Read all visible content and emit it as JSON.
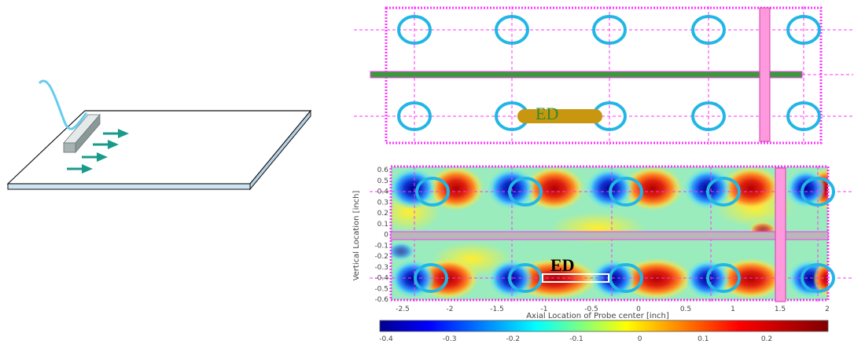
{
  "diagram": {
    "top_label": "ED",
    "bottom_label": "ED",
    "colors": {
      "grid_line": "#ff33ff",
      "circle": "#22b6e6",
      "rod": "#c8960f",
      "plate_top": "#ffffff",
      "plate_edge": "#c8e0f0",
      "arrow": "#1a9a8a",
      "probe": "#9aa4a4",
      "cable": "#66ccee",
      "green_bar": "#3a9a3a",
      "pink_bar": "#ff99dd"
    }
  },
  "heatmap": {
    "y_axis_title": "Vertical Location [inch]",
    "x_axis_title": "Axial Location of Probe center [inch]",
    "x_ticks": [
      "-2.5",
      "-2",
      "-1.5",
      "-1",
      "-0.5",
      "0",
      "0.5",
      "1",
      "1.5",
      "2"
    ],
    "y_ticks": [
      "0.6",
      "0.5",
      "0.4",
      "0.3",
      "0.2",
      "0.1",
      "0",
      "-0.1",
      "-0.2",
      "-0.3",
      "-0.4",
      "-0.5",
      "-0.6"
    ]
  },
  "colorbar": {
    "ticks": [
      "-0.4",
      "-0.3",
      "-0.2",
      "-0.1",
      "0",
      "0.1",
      "0.2"
    ]
  }
}
